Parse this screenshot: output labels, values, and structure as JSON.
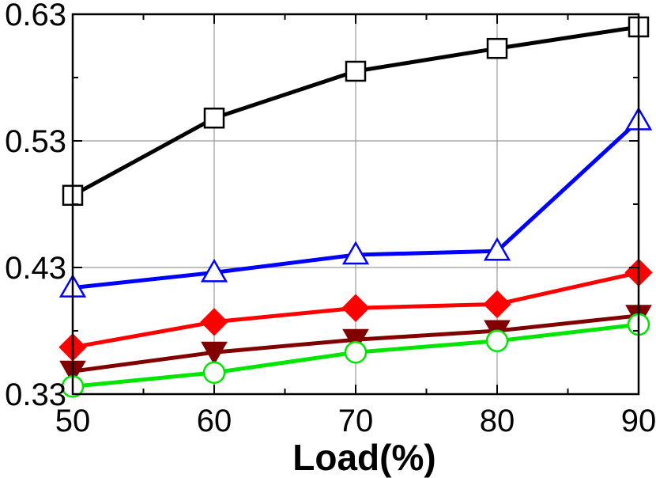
{
  "chart_data": {
    "type": "line",
    "title": "",
    "xlabel": "Load(%)",
    "ylabel": "",
    "x": [
      50,
      60,
      70,
      80,
      90
    ],
    "xlim": [
      50,
      90
    ],
    "ylim": [
      0.33,
      0.63
    ],
    "x_ticks": [
      50,
      60,
      70,
      80,
      90
    ],
    "y_ticks": [
      0.33,
      0.43,
      0.53,
      0.63
    ],
    "x_tick_labels": [
      "50",
      "60",
      "70",
      "80",
      "90"
    ],
    "y_tick_labels": [
      "0.33",
      "0.43",
      "0.53",
      "0.63"
    ],
    "grid": true,
    "legend": "none",
    "series": [
      {
        "values": [
          0.487,
          0.548,
          0.585,
          0.603,
          0.62
        ],
        "color": "#000000",
        "marker": "square-open"
      },
      {
        "values": [
          0.414,
          0.426,
          0.44,
          0.443,
          0.546
        ],
        "color": "#0000ff",
        "marker": "triangle-up-open"
      },
      {
        "values": [
          0.367,
          0.387,
          0.398,
          0.401,
          0.426
        ],
        "color": "#ff0000",
        "marker": "diamond-filled"
      },
      {
        "values": [
          0.348,
          0.363,
          0.373,
          0.38,
          0.392
        ],
        "color": "#800000",
        "marker": "triangle-down-filled"
      },
      {
        "values": [
          0.336,
          0.347,
          0.363,
          0.372,
          0.385
        ],
        "color": "#00e600",
        "marker": "circle-open"
      }
    ]
  }
}
